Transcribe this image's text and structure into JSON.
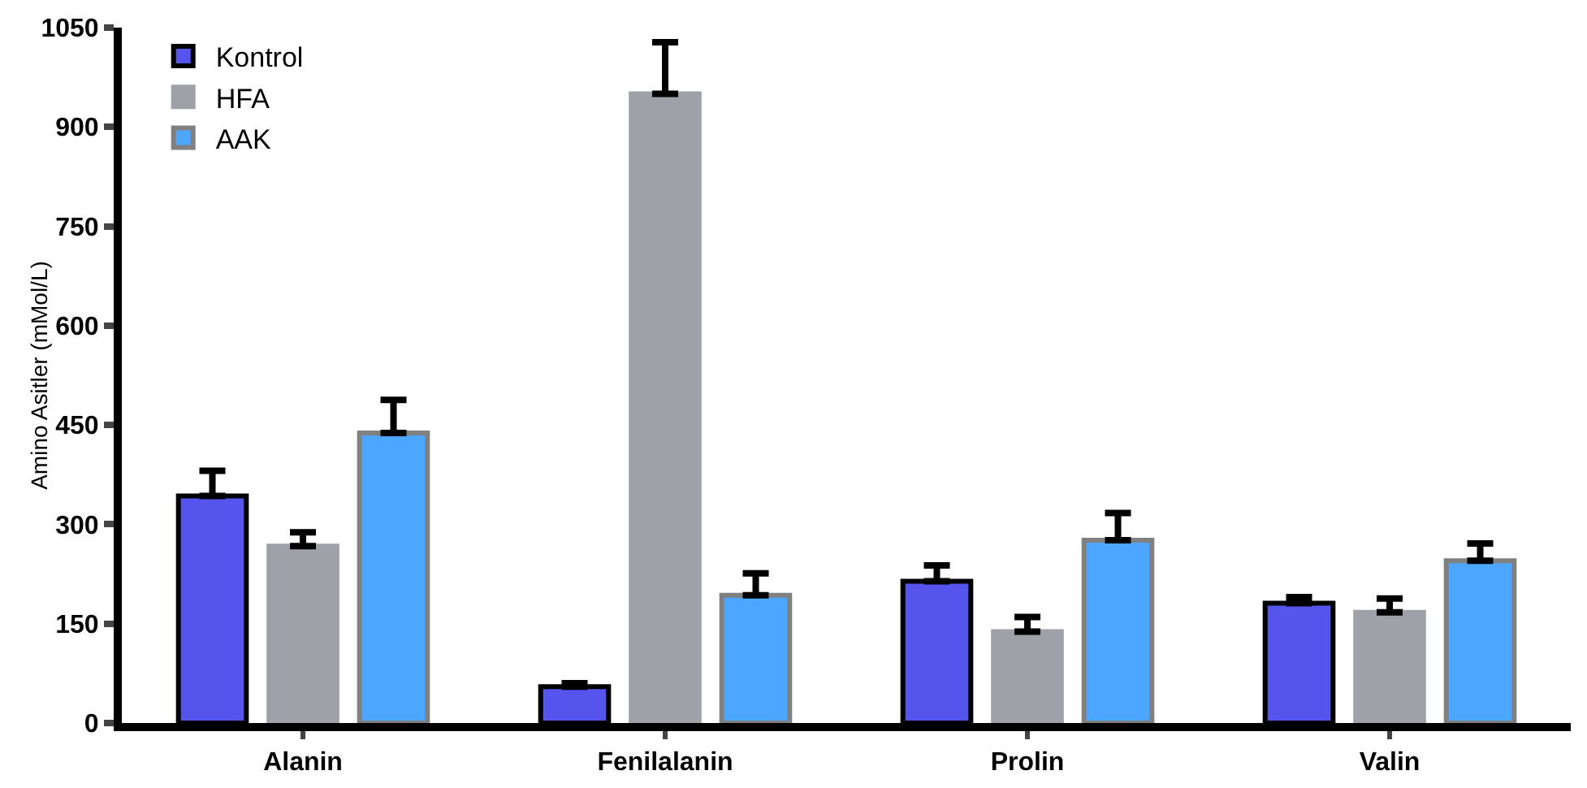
{
  "chart_data": {
    "type": "bar",
    "ylabel": "Amino Asitler (mMol/L)",
    "categories": [
      "Alanin",
      "Fenilalanin",
      "Prolin",
      "Valin"
    ],
    "series": [
      {
        "name": "Kontrol",
        "color": "#5555ee",
        "values": [
          343,
          55,
          214,
          181
        ],
        "errors": [
          [
            343,
            381
          ],
          [
            55,
            60
          ],
          [
            214,
            238
          ],
          [
            181,
            190
          ]
        ]
      },
      {
        "name": "HFA",
        "color": "#a0a0a8",
        "values": [
          267,
          950,
          138,
          167
        ],
        "errors": [
          [
            267,
            288
          ],
          [
            950,
            1028
          ],
          [
            138,
            160
          ],
          [
            167,
            188
          ]
        ]
      },
      {
        "name": "AAK",
        "color": "#4da6ff",
        "values": [
          438,
          193,
          276,
          245
        ],
        "errors": [
          [
            438,
            488
          ],
          [
            193,
            226
          ],
          [
            276,
            317
          ],
          [
            245,
            271
          ]
        ]
      }
    ],
    "ylim": [
      0,
      1050
    ],
    "yticks": [
      0,
      150,
      300,
      450,
      600,
      750,
      900,
      1050
    ],
    "grid": false,
    "legend": "top left"
  }
}
